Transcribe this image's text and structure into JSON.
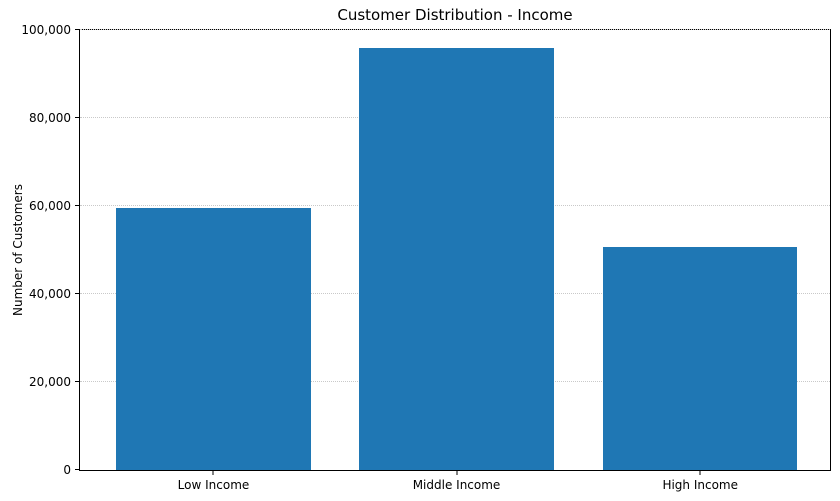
{
  "title": "Customer Distribution - Income",
  "colors": {
    "bar": "#1f77b4",
    "grid": "#c9c9c9",
    "axis": "#000000",
    "background": "#ffffff"
  },
  "chart_data": {
    "type": "bar",
    "title": "Customer Distribution - Income",
    "xlabel": "",
    "ylabel": "Number of Customers",
    "categories": [
      "Low Income",
      "Middle Income",
      "High Income"
    ],
    "values": [
      59600,
      96000,
      50700
    ],
    "ylim": [
      0,
      100000
    ],
    "yticks": [
      0,
      20000,
      40000,
      60000,
      80000,
      100000
    ],
    "ytick_labels": [
      "0",
      "20,000",
      "40,000",
      "60,000",
      "80,000",
      "100,000"
    ],
    "grid": "horizontal-dotted",
    "legend_position": "none",
    "bar_color": "#1f77b4"
  }
}
